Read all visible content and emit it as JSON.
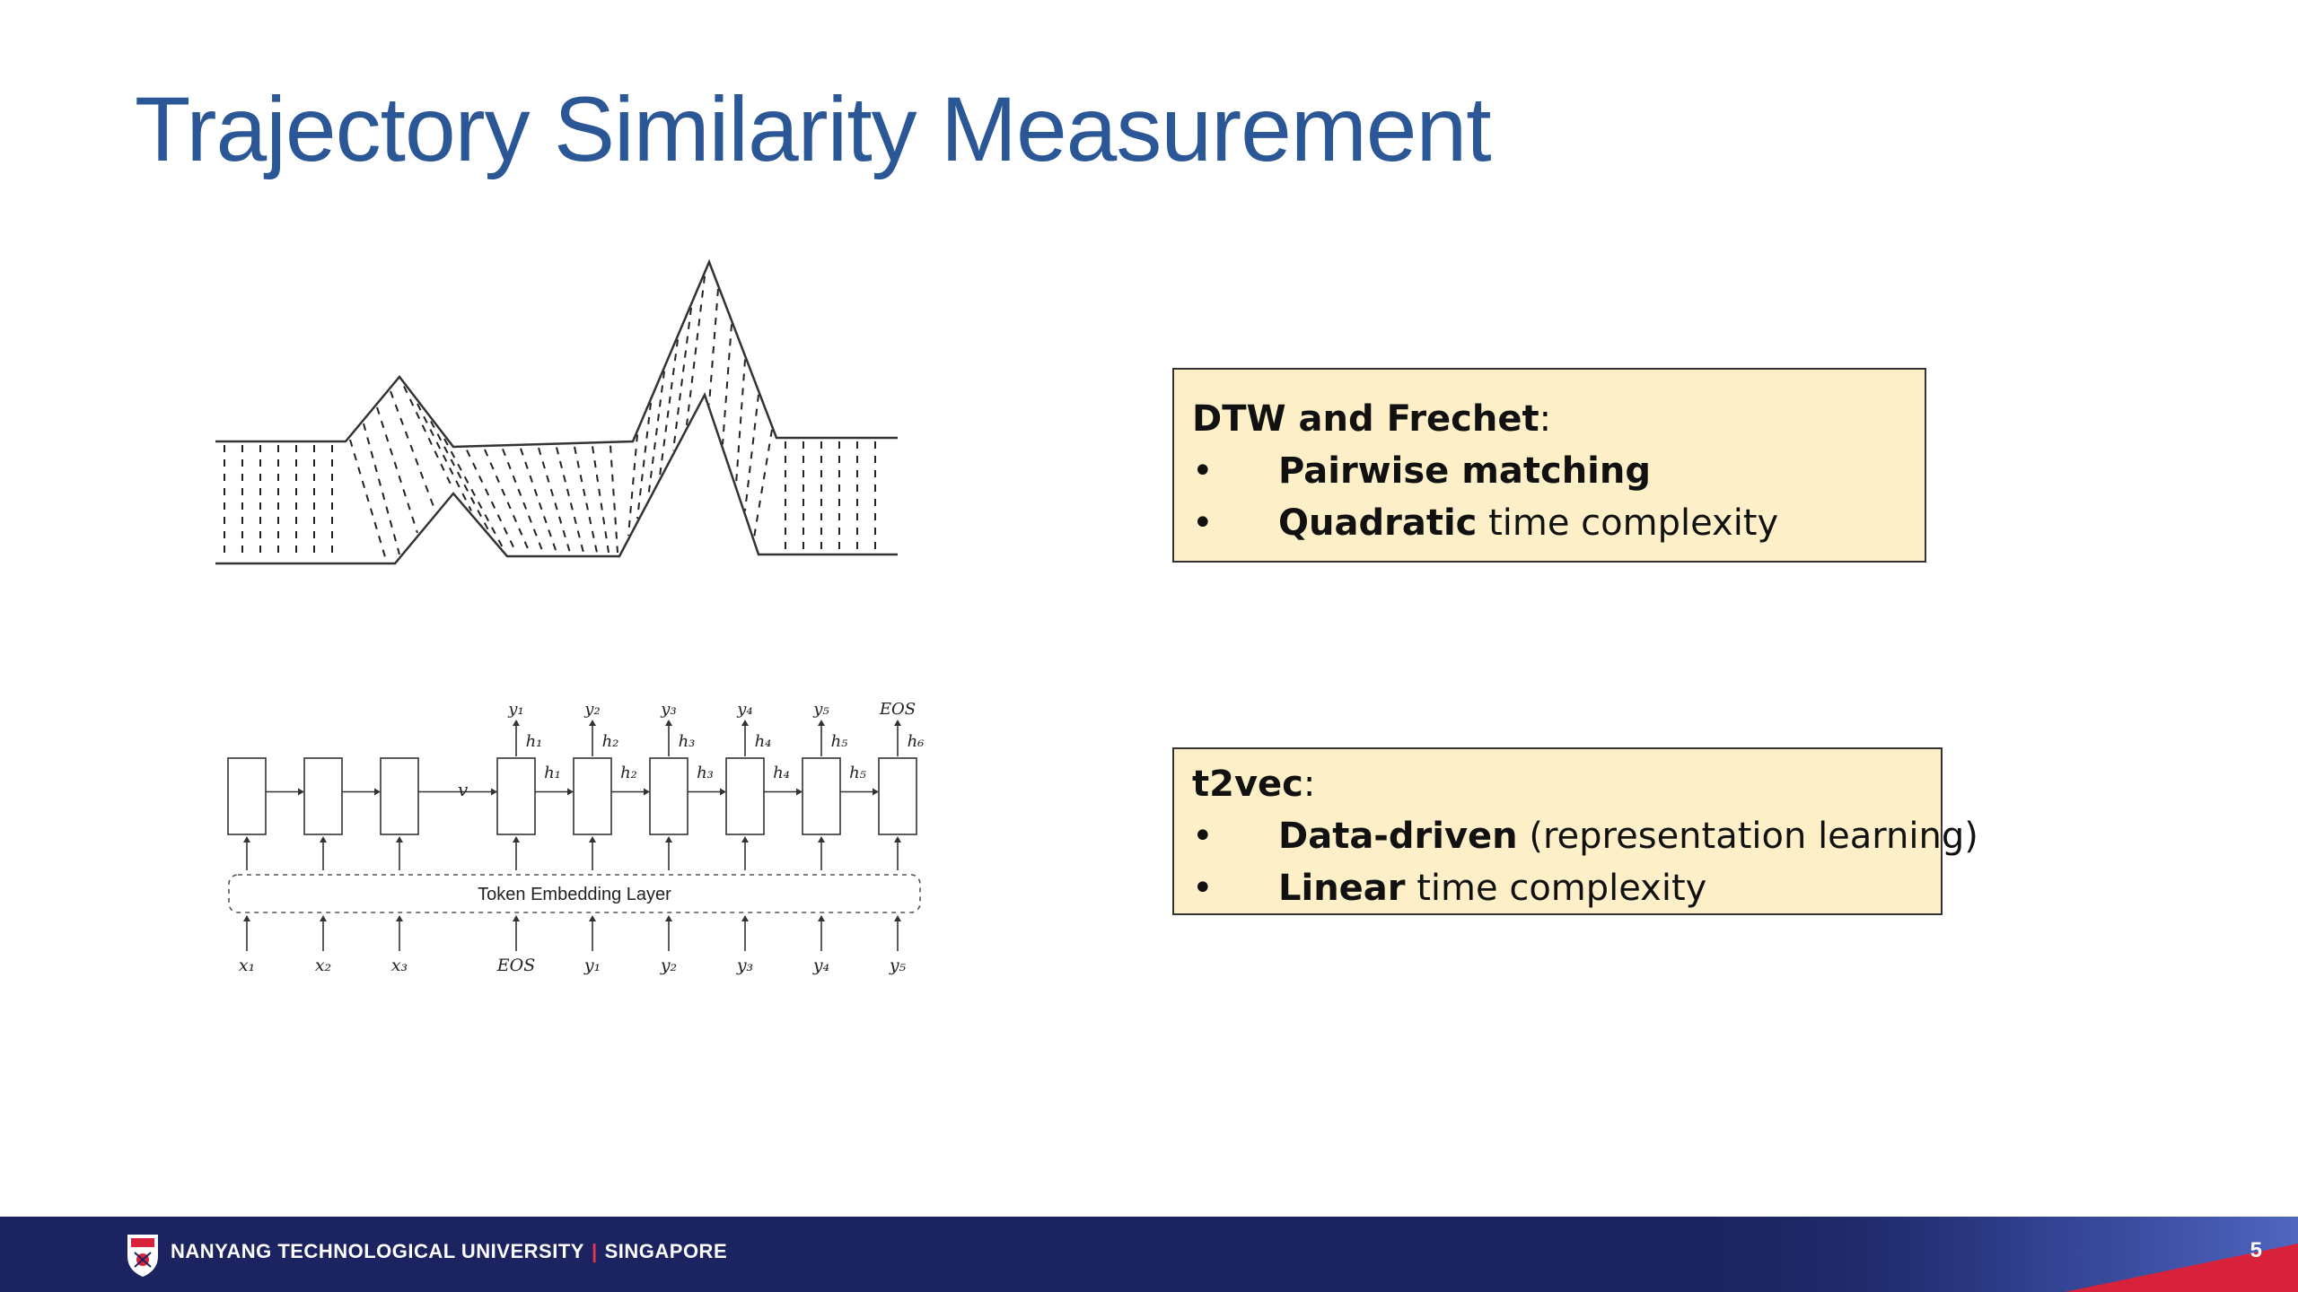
{
  "title": "Trajectory Similarity Measurement",
  "callout_dtw": {
    "heading_bold": "DTW and Frechet",
    "heading_rest": ":",
    "bullets": [
      {
        "bullet": "•",
        "bold": "Pairwise matching",
        "rest": ""
      },
      {
        "bullet": "•",
        "bold": "Quadratic",
        "rest": " time complexity"
      }
    ]
  },
  "callout_t2vec": {
    "heading_bold": "t2vec",
    "heading_rest": ":",
    "bullets": [
      {
        "bullet": "•",
        "bold": "Data-driven",
        "rest": " (representation learning)"
      },
      {
        "bullet": "•",
        "bold": "Linear",
        "rest": " time complexity"
      }
    ]
  },
  "seq_diagram": {
    "embedding_label": "Token Embedding Layer",
    "v_label": "v",
    "inputs": [
      "x₁",
      "x₂",
      "x₃",
      "EOS",
      "y₁",
      "y₂",
      "y₃",
      "y₄",
      "y₅"
    ],
    "outputs": [
      "y₁",
      "y₂",
      "y₃",
      "y₄",
      "y₅",
      "EOS"
    ],
    "hidden_top": [
      "h₁",
      "h₂",
      "h₃",
      "h₄",
      "h₅",
      "h₆"
    ],
    "hidden_mid": [
      "h₁",
      "h₂",
      "h₃",
      "h₄",
      "h₅"
    ]
  },
  "footer": {
    "university": "NANYANG TECHNOLOGICAL UNIVERSITY",
    "separator": "|",
    "location": "SINGAPORE",
    "page_number": "5"
  },
  "colors": {
    "title": "#2b5797",
    "callout_bg": "#fdf0c8",
    "footer_bg": "#1b2460",
    "accent_red": "#e8334a"
  }
}
